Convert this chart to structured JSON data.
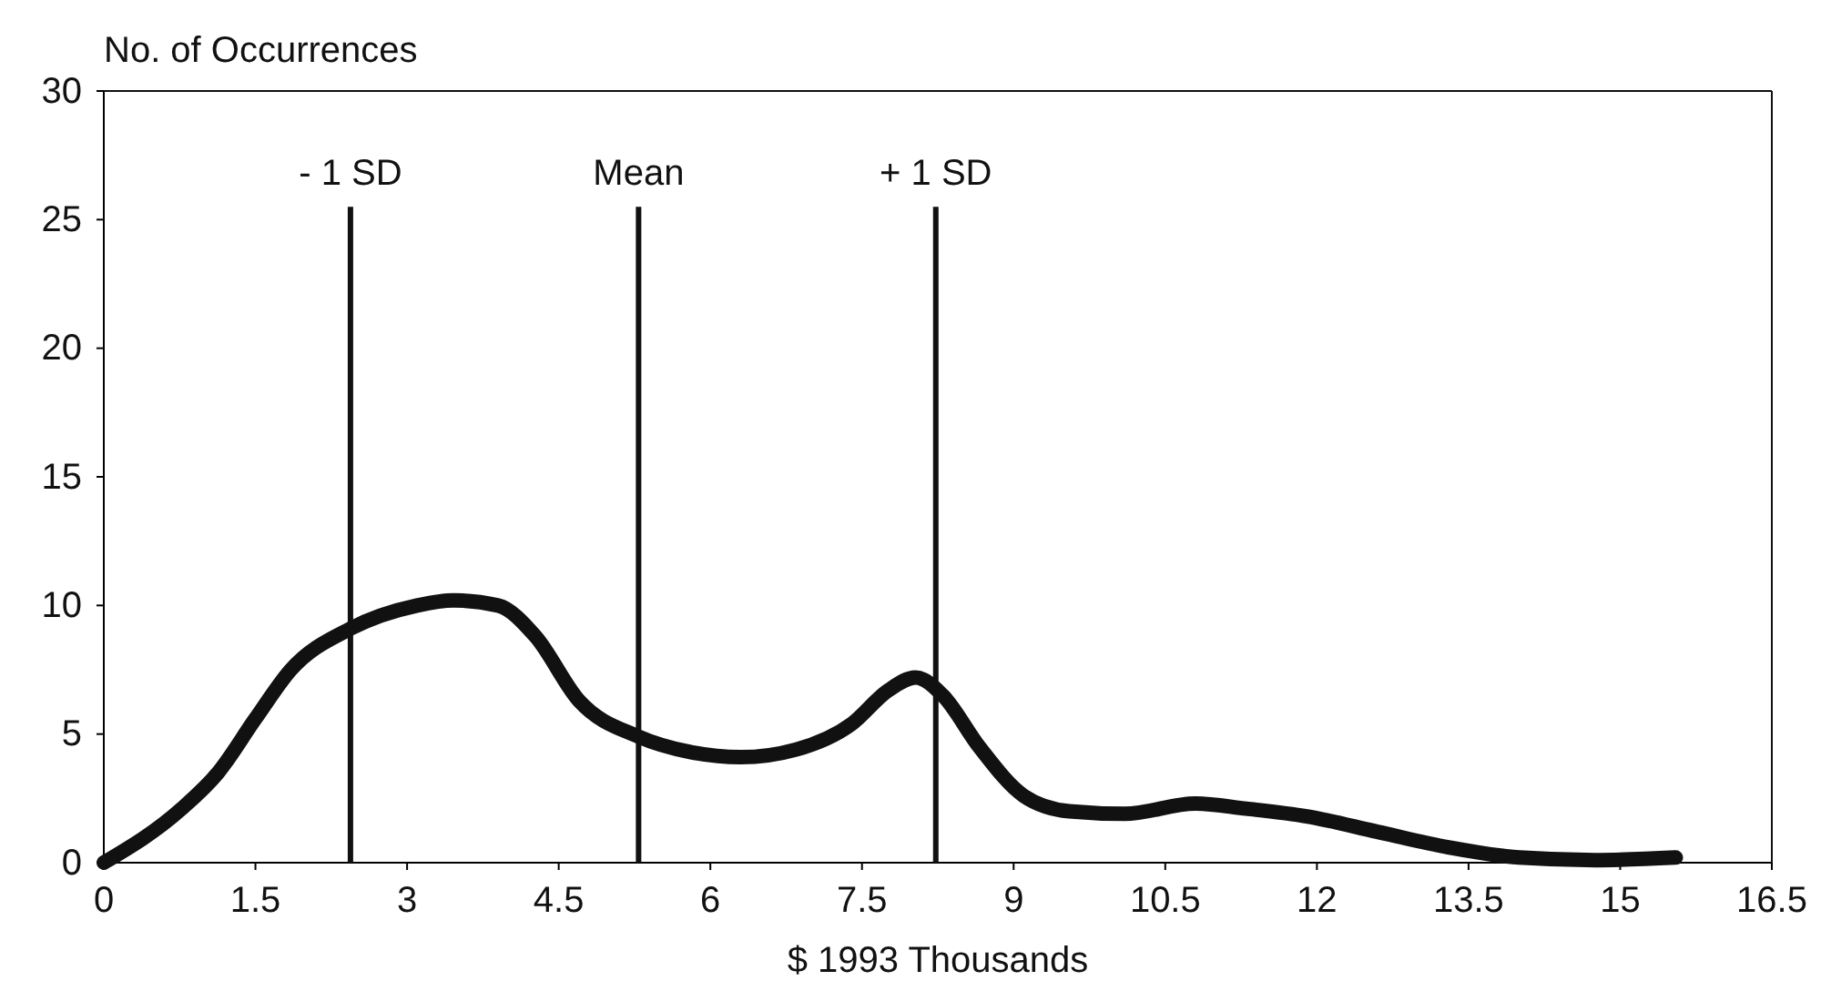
{
  "chart_data": {
    "type": "line",
    "ylabel": "No. of Occurrences",
    "xlabel": "$ 1993 Thousands",
    "xlim": [
      0,
      16.5
    ],
    "xticks": [
      0,
      1.5,
      3,
      4.5,
      6,
      7.5,
      9,
      10.5,
      12,
      13.5,
      15,
      16.5
    ],
    "ylim": [
      0,
      30
    ],
    "yticks": [
      0,
      5,
      10,
      15,
      20,
      25,
      30
    ],
    "marker": "none",
    "line_style": "solid",
    "series": [
      {
        "color": "#111111",
        "x": [
          0,
          0.77,
          1.13,
          1.5,
          1.85,
          2.44,
          3.1,
          3.46,
          3.9,
          4.27,
          4.7,
          5.29,
          5.8,
          6.3,
          6.85,
          7.4,
          7.76,
          8.03,
          8.3,
          8.66,
          9.1,
          9.55,
          10.1,
          10.8,
          11.3,
          11.9,
          12.6,
          13.3,
          14.0,
          14.75,
          15.55
        ],
        "values": [
          0,
          2.1,
          3.5,
          5.6,
          7.5,
          9.1,
          10.0,
          10.2,
          10.0,
          8.8,
          6.3,
          4.9,
          4.3,
          4.1,
          4.4,
          5.4,
          6.7,
          7.2,
          6.5,
          4.5,
          2.6,
          2.0,
          1.9,
          2.3,
          2.1,
          1.8,
          1.2,
          0.6,
          0.2,
          0.1,
          0.2
        ]
      }
    ],
    "ref_lines": [
      {
        "axis": "x",
        "value": 2.44,
        "label": "- 1 SD",
        "color": "#111111"
      },
      {
        "axis": "x",
        "value": 5.29,
        "label": "Mean",
        "color": "#111111"
      },
      {
        "axis": "x",
        "value": 8.23,
        "label": "+ 1 SD",
        "color": "#111111"
      }
    ]
  }
}
